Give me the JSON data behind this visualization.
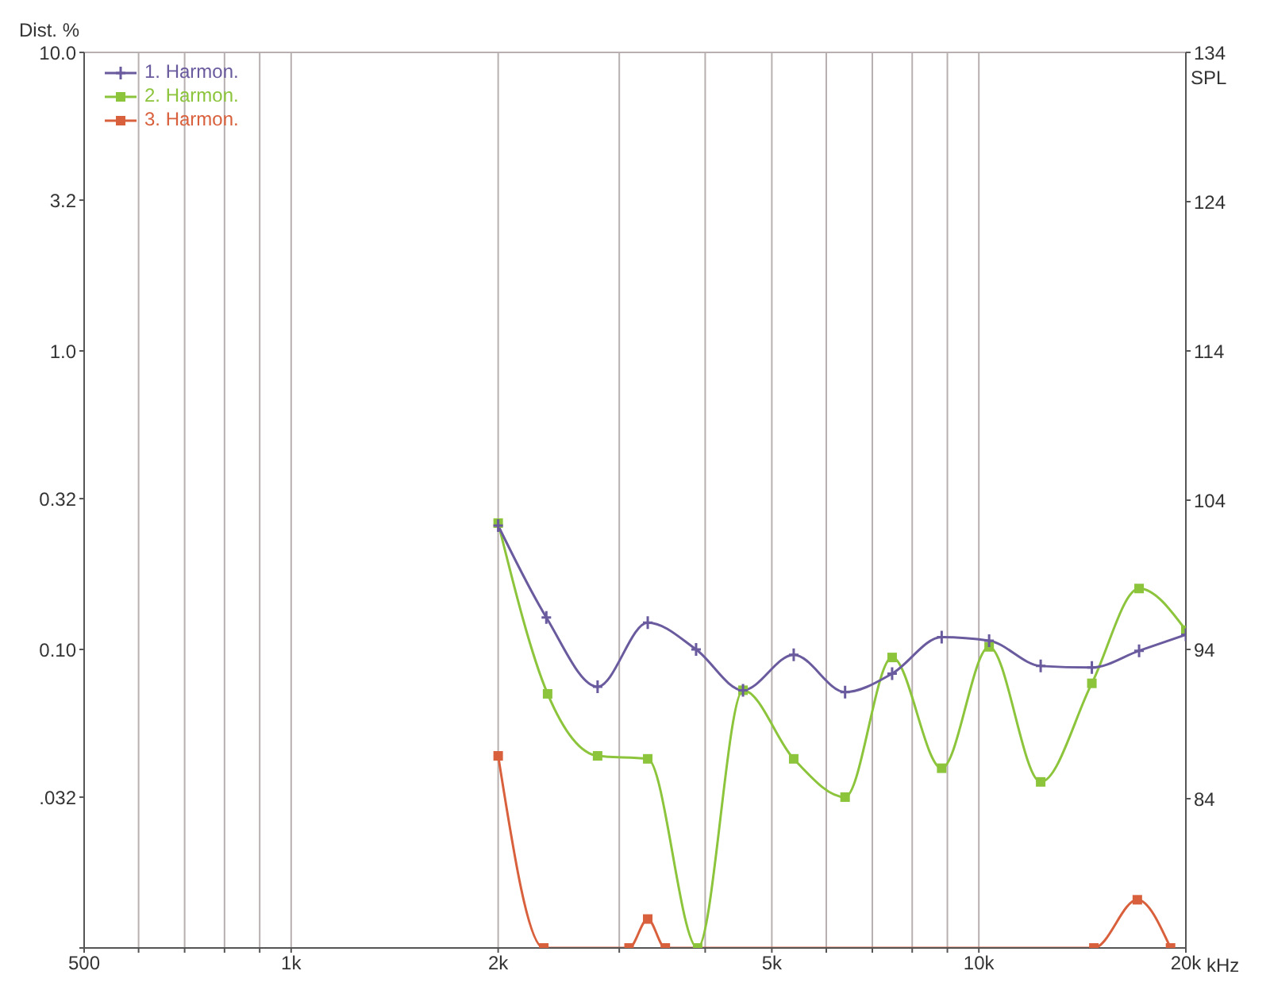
{
  "chart_data": {
    "type": "line",
    "ylabel": "Dist. %",
    "y2label": "SPL",
    "log": "xy",
    "grid": true,
    "legend": "top left",
    "line_style": "solid",
    "xlim": [
      500,
      20000
    ],
    "xticks": [
      500,
      {
        "value": 600,
        "label": null
      },
      {
        "value": 700,
        "label": null
      },
      {
        "value": 800,
        "label": null
      },
      {
        "value": 900,
        "label": null
      },
      {
        "value": 1000,
        "label": "1k"
      },
      {
        "value": 2000,
        "label": "2k"
      },
      {
        "value": 3000,
        "label": null
      },
      {
        "value": 4000,
        "label": null
      },
      {
        "value": 5000,
        "label": "5k"
      },
      {
        "value": 6000,
        "label": null
      },
      {
        "value": 7000,
        "label": null
      },
      {
        "value": 8000,
        "label": null
      },
      {
        "value": 9000,
        "label": null
      },
      {
        "value": 10000,
        "label": "10k"
      },
      {
        "value": 20000,
        "label": "20k"
      }
    ],
    "xlabel": "kHz",
    "ylim": [
      0.01,
      10
    ],
    "yticks": [
      {
        "value": 0.01,
        "label": null
      },
      {
        "value": 0.032,
        "label": ".032"
      },
      {
        "value": 0.1,
        "label": "0.10"
      },
      {
        "value": 0.32,
        "label": "0.32"
      },
      {
        "value": 1,
        "label": "1.0"
      },
      {
        "value": 3.2,
        "label": "3.2"
      },
      {
        "value": 10,
        "label": "10.0"
      }
    ],
    "y2lim": [
      74,
      134
    ],
    "y2ticks": [
      84,
      94,
      104,
      114,
      124,
      134
    ],
    "series": [
      {
        "name": "1. Harmon.",
        "color": "#6a5a9e",
        "marker": "cross",
        "x": [
          2000,
          2350,
          2790,
          3300,
          3880,
          4540,
          5380,
          6390,
          7480,
          8830,
          10350,
          12300,
          14600,
          17100,
          20000
        ],
        "values": [
          0.26,
          0.128,
          0.075,
          0.123,
          0.1,
          0.073,
          0.096,
          0.072,
          0.083,
          0.11,
          0.107,
          0.088,
          0.087,
          0.099,
          0.112
        ]
      },
      {
        "name": "2. Harmon.",
        "color": "#8cc43c",
        "marker": "square",
        "x": [
          2000,
          2360,
          2790,
          3300,
          3900,
          4540,
          5380,
          6390,
          7480,
          8830,
          10350,
          12300,
          14600,
          17100,
          20000
        ],
        "values": [
          0.265,
          0.071,
          0.044,
          0.043,
          0.01,
          0.073,
          0.043,
          0.032,
          0.094,
          0.04,
          0.102,
          0.036,
          0.077,
          0.16,
          0.116
        ]
      },
      {
        "name": "3. Harmon.",
        "color": "#d9603c",
        "marker": "square",
        "x": [
          2000,
          2330,
          3100,
          3300,
          3500,
          14700,
          17000,
          19000
        ],
        "values": [
          0.044,
          0.01,
          0.01,
          0.0125,
          0.01,
          0.01,
          0.0145,
          0.01
        ]
      }
    ]
  }
}
